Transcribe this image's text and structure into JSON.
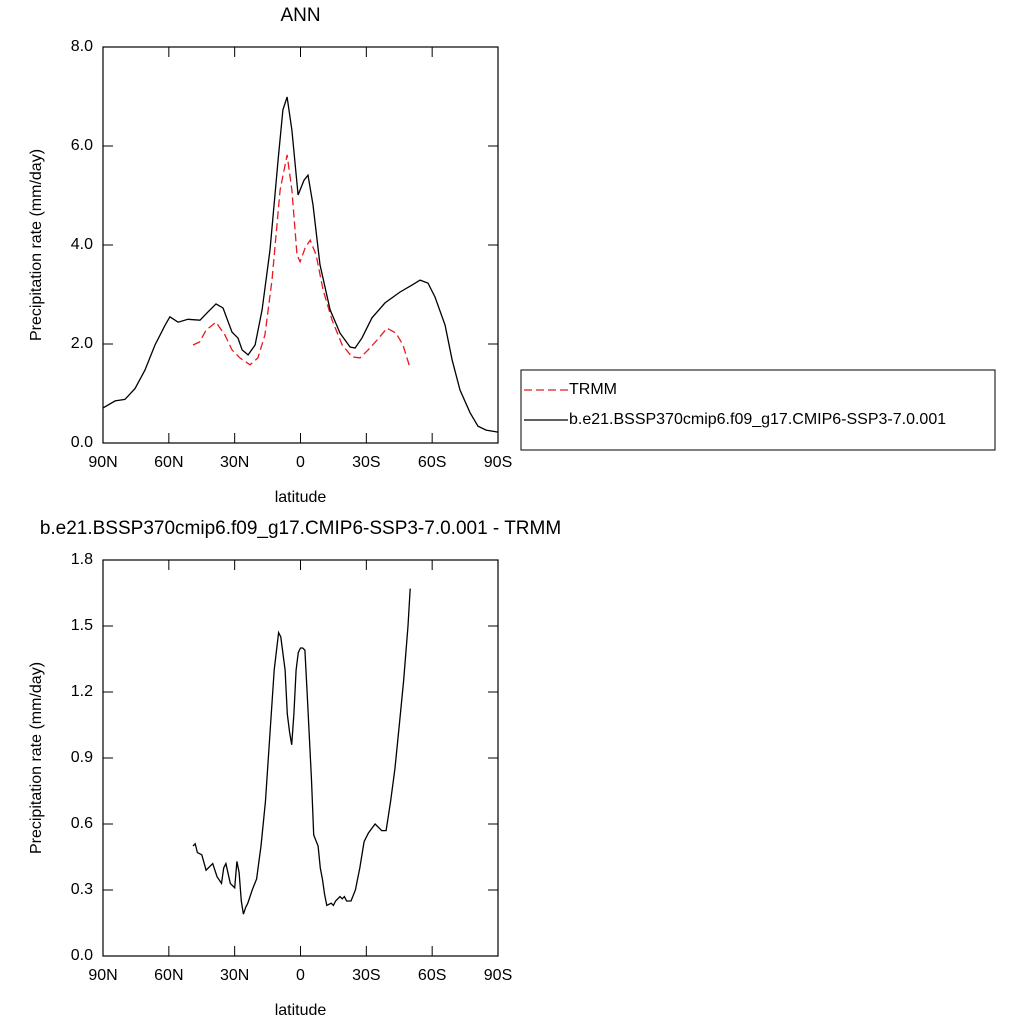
{
  "chart_data": [
    {
      "type": "line",
      "title": "ANN",
      "xlabel": "latitude",
      "ylabel": "Precipitation rate (mm/day)",
      "xlim": [
        90,
        -90
      ],
      "xticks": [
        {
          "value": 90,
          "label": "90N"
        },
        {
          "value": 60,
          "label": "60N"
        },
        {
          "value": 30,
          "label": "30N"
        },
        0,
        {
          "value": -30,
          "label": "30S"
        },
        {
          "value": -60,
          "label": "60S"
        },
        {
          "value": -90,
          "label": "90S"
        }
      ],
      "ylim": [
        0,
        8
      ],
      "yticks": [
        {
          "value": 0,
          "label": "0.0"
        },
        {
          "value": 2,
          "label": "2.0"
        },
        {
          "value": 4,
          "label": "4.0"
        },
        {
          "value": 6,
          "label": "6.0"
        },
        {
          "value": 8,
          "label": "8.0"
        }
      ],
      "legend": "right",
      "series": [
        {
          "name": "TRMM",
          "color": "#e8191f",
          "line_style": "dashed",
          "x": [
            49,
            46,
            43,
            38.5,
            34.4,
            31.2,
            27.6,
            23,
            19.4,
            16.2,
            13,
            9.3,
            6.1,
            3.9,
            1.6,
            0.2,
            -2.1,
            -4.4,
            -7.1,
            -10.3,
            -14.4,
            -19,
            -23.5,
            -27.1,
            -30.8,
            -34.9,
            -39.4,
            -43.5,
            -46.7,
            -49.9
          ],
          "values": [
            1.98,
            2.04,
            2.28,
            2.44,
            2.18,
            1.88,
            1.72,
            1.58,
            1.72,
            2.18,
            3.29,
            5.11,
            5.82,
            5.11,
            3.8,
            3.66,
            3.94,
            4.1,
            3.8,
            3.09,
            2.48,
            1.98,
            1.74,
            1.72,
            1.88,
            2.08,
            2.32,
            2.22,
            1.98,
            1.52
          ]
        },
        {
          "name": "b.e21.BSSP370cmip6.f09_g17.CMIP6-SSP3-7.0.001",
          "color": "#000000",
          "line_style": "solid",
          "x": [
            90,
            84.5,
            80,
            75.4,
            70.9,
            66.3,
            61.7,
            59.5,
            55.8,
            51.3,
            45.8,
            42.1,
            38.5,
            35.3,
            31.2,
            28.5,
            26.6,
            23.9,
            20.7,
            17.5,
            13.9,
            10.2,
            8,
            6.1,
            3.9,
            1.1,
            -1.6,
            -3.4,
            -5.7,
            -8.9,
            -13.5,
            -18,
            -22.6,
            -24.9,
            -28,
            -32.6,
            -38.5,
            -45.4,
            -50.8,
            -54.5,
            -58.1,
            -61.3,
            -65.9,
            -69.1,
            -72.7,
            -77.3,
            -80.9,
            -84.6,
            -90
          ],
          "values": [
            0.71,
            0.85,
            0.88,
            1.1,
            1.47,
            1.98,
            2.38,
            2.55,
            2.44,
            2.5,
            2.48,
            2.65,
            2.81,
            2.73,
            2.24,
            2.12,
            1.88,
            1.78,
            1.98,
            2.69,
            3.9,
            5.72,
            6.73,
            6.99,
            6.32,
            5.01,
            5.31,
            5.41,
            4.81,
            3.6,
            2.69,
            2.22,
            1.94,
            1.92,
            2.12,
            2.53,
            2.83,
            3.05,
            3.19,
            3.29,
            3.23,
            2.95,
            2.38,
            1.68,
            1.07,
            0.61,
            0.34,
            0.26,
            0.22
          ]
        }
      ]
    },
    {
      "type": "line",
      "title": "b.e21.BSSP370cmip6.f09_g17.CMIP6-SSP3-7.0.001 - TRMM",
      "xlabel": "latitude",
      "ylabel": "Precipitation rate (mm/day)",
      "xlim": [
        90,
        -90
      ],
      "xticks": [
        {
          "value": 90,
          "label": "90N"
        },
        {
          "value": 60,
          "label": "60N"
        },
        {
          "value": 30,
          "label": "30N"
        },
        0,
        {
          "value": -30,
          "label": "30S"
        },
        {
          "value": -60,
          "label": "60S"
        },
        {
          "value": -90,
          "label": "90S"
        }
      ],
      "ylim": [
        0,
        1.8
      ],
      "yticks": [
        {
          "value": 0,
          "label": "0.0"
        },
        0.3,
        0.6,
        0.9,
        1.2,
        1.5,
        1.8
      ],
      "color": "#000000",
      "x": [
        49,
        48,
        47,
        45,
        43,
        40,
        38,
        36,
        35,
        34,
        32,
        30,
        29,
        28,
        27,
        26,
        25,
        24,
        22,
        20,
        18,
        16,
        14,
        12,
        10,
        9,
        7,
        6,
        5,
        4,
        3,
        2,
        1,
        0,
        -1,
        -2,
        -3,
        -5,
        -6,
        -8,
        -9,
        -10,
        -11,
        -12,
        -14,
        -15,
        -16,
        -18,
        -19,
        -20,
        -21,
        -23,
        -25,
        -27,
        -29,
        -31,
        -34,
        -37,
        -39,
        -41,
        -43,
        -45,
        -47,
        -49,
        -50
      ],
      "values": [
        0.5,
        0.51,
        0.47,
        0.46,
        0.39,
        0.42,
        0.36,
        0.33,
        0.4,
        0.42,
        0.33,
        0.31,
        0.43,
        0.38,
        0.25,
        0.19,
        0.22,
        0.24,
        0.3,
        0.35,
        0.5,
        0.7,
        1.0,
        1.3,
        1.47,
        1.45,
        1.3,
        1.1,
        1.02,
        0.96,
        1.1,
        1.3,
        1.38,
        1.4,
        1.4,
        1.39,
        1.2,
        0.8,
        0.55,
        0.5,
        0.4,
        0.35,
        0.28,
        0.23,
        0.24,
        0.23,
        0.25,
        0.27,
        0.26,
        0.27,
        0.25,
        0.25,
        0.3,
        0.4,
        0.52,
        0.56,
        0.6,
        0.57,
        0.57,
        0.7,
        0.85,
        1.05,
        1.25,
        1.5,
        1.67
      ]
    }
  ]
}
